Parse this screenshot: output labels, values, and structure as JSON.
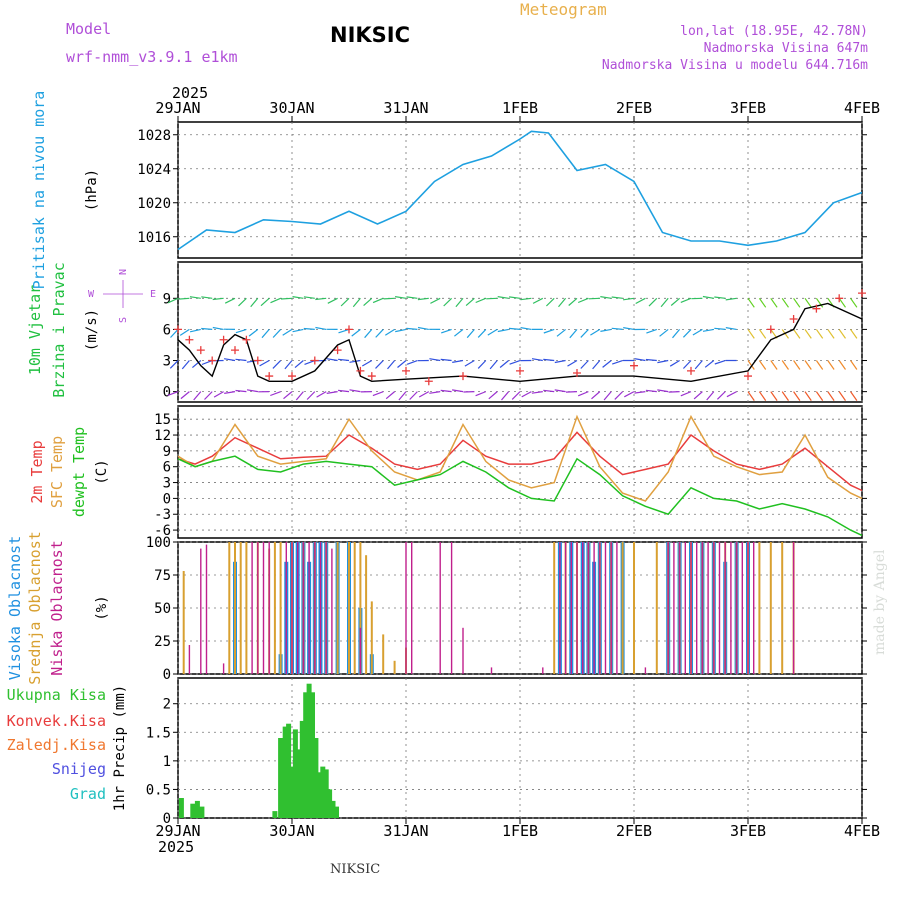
{
  "header": {
    "model_label": "Model",
    "model_name": "wrf-nmm_v3.9.1 e1km",
    "station": "NIKSIC",
    "title": "Meteogram",
    "coords": "lon,lat (18.95E, 42.78N)",
    "elevation": "Nadmorska Visina 647m",
    "model_elevation": "Nadmorska Visina u modelu 644.716m",
    "footer_station": "NIKSIC",
    "credit": "made by Angel",
    "year_top": "2025",
    "year_bottom": "2025"
  },
  "colors": {
    "pressure": "#1ea0e0",
    "temp2m": "#e83c3c",
    "sfc": "#e0a040",
    "dewpt": "#20c020",
    "high_cloud": "#1e90e0",
    "mid_cloud": "#d8a030",
    "low_cloud": "#c0208c",
    "precip": "#30c030",
    "wind_line": "#000000",
    "gust": "#e83c3c"
  },
  "chart_data": [
    {
      "type": "line",
      "panel": "pressure",
      "ylabel_left": "Pritisak na nivou mora",
      "ylabel": "(hPa)",
      "x_categories": [
        "29JAN",
        "30JAN",
        "31JAN",
        "1FEB",
        "2FEB",
        "3FEB",
        "4FEB"
      ],
      "yticks": [
        1016,
        1020,
        1024,
        1028
      ],
      "ylim": [
        1013.5,
        1029.5
      ],
      "x": [
        0,
        0.25,
        0.5,
        0.75,
        1,
        1.25,
        1.5,
        1.75,
        2,
        2.25,
        2.5,
        2.75,
        3,
        3.1,
        3.25,
        3.5,
        3.75,
        4,
        4.25,
        4.5,
        4.75,
        5,
        5.25,
        5.5,
        5.75,
        6
      ],
      "values": [
        1014.5,
        1016.8,
        1016.5,
        1018,
        1017.8,
        1017.5,
        1019,
        1017.5,
        1019,
        1022.5,
        1024.5,
        1025.5,
        1027.5,
        1028.4,
        1028.2,
        1023.8,
        1024.5,
        1022.5,
        1016.5,
        1015.5,
        1015.5,
        1015,
        1015.5,
        1016.5,
        1020,
        1021.2
      ],
      "grid": true
    },
    {
      "type": "line",
      "panel": "wind",
      "ylabel_left": [
        "10m Vjetar",
        "Brzina i Pravac"
      ],
      "ylabel": "(m/s)",
      "compass": {
        "n": "N",
        "s": "S",
        "e": "E",
        "w": "W"
      },
      "yticks": [
        0,
        3,
        6,
        9
      ],
      "ylim": [
        -1,
        12.5
      ],
      "series": [
        {
          "role": "speed",
          "x": [
            0,
            0.1,
            0.2,
            0.3,
            0.4,
            0.5,
            0.6,
            0.7,
            0.8,
            1,
            1.2,
            1.4,
            1.5,
            1.6,
            1.7,
            2,
            2.5,
            3,
            3.5,
            4,
            4.5,
            5,
            5.2,
            5.4,
            5.5,
            5.7,
            6
          ],
          "values": [
            5,
            4,
            2.5,
            1.5,
            4.5,
            5.5,
            5,
            1.5,
            1,
            1,
            2,
            4.5,
            5,
            1.5,
            1,
            1.2,
            1.5,
            1,
            1.5,
            1.5,
            1,
            2,
            5,
            6,
            8,
            8.5,
            7
          ]
        },
        {
          "role": "gust",
          "x": [
            0,
            0.1,
            0.2,
            0.3,
            0.4,
            0.5,
            0.6,
            0.7,
            0.8,
            1,
            1.2,
            1.4,
            1.5,
            1.6,
            1.7,
            2,
            2.2,
            2.5,
            3,
            3.5,
            4,
            4.5,
            5,
            5.2,
            5.4,
            5.6,
            5.8,
            6
          ],
          "values": [
            6,
            5,
            4,
            3,
            5,
            4,
            5,
            3,
            1.5,
            1.5,
            3,
            4,
            6,
            2,
            1.5,
            2,
            1,
            1.5,
            2,
            1.8,
            2.5,
            2,
            1.5,
            6,
            7,
            8,
            9,
            9.5
          ]
        }
      ]
    },
    {
      "type": "line",
      "panel": "temperature",
      "ylabel_left": [
        "2m Temp",
        "SFC Temp",
        "dewpt Temp"
      ],
      "ylabel": "(C)",
      "yticks": [
        -6,
        -3,
        0,
        3,
        6,
        9,
        12,
        15
      ],
      "ylim": [
        -7.5,
        17.5
      ],
      "series": [
        {
          "name": "2m Temp",
          "x": [
            0,
            0.15,
            0.3,
            0.5,
            0.7,
            0.9,
            1.1,
            1.3,
            1.5,
            1.7,
            1.9,
            2.1,
            2.3,
            2.5,
            2.7,
            2.9,
            3.1,
            3.3,
            3.5,
            3.7,
            3.9,
            4.1,
            4.3,
            4.5,
            4.7,
            4.9,
            5.1,
            5.3,
            5.5,
            5.7,
            5.9,
            6
          ],
          "values": [
            7.5,
            6.5,
            8,
            11.5,
            9.5,
            7.5,
            7.8,
            8,
            12,
            9.5,
            6.5,
            5.5,
            6.5,
            11,
            8,
            6.5,
            6.5,
            7.5,
            12.5,
            8,
            4.5,
            5.5,
            6.5,
            12,
            9,
            6.5,
            5.5,
            6.5,
            9.5,
            6,
            2.5,
            1.5
          ]
        },
        {
          "name": "SFC Temp",
          "x": [
            0,
            0.15,
            0.3,
            0.5,
            0.7,
            0.9,
            1.1,
            1.3,
            1.5,
            1.7,
            1.9,
            2.1,
            2.3,
            2.5,
            2.7,
            2.9,
            3.1,
            3.3,
            3.5,
            3.7,
            3.9,
            4.1,
            4.3,
            4.5,
            4.7,
            4.9,
            5.1,
            5.3,
            5.5,
            5.7,
            5.9,
            6
          ],
          "values": [
            8,
            6,
            7,
            14,
            8,
            6.5,
            7,
            7.5,
            15,
            9,
            5,
            3.5,
            5,
            14,
            7,
            3.5,
            2,
            3,
            15.5,
            6,
            1,
            -0.5,
            5,
            15.5,
            8,
            6,
            4.5,
            5,
            12,
            4,
            1,
            0
          ]
        },
        {
          "name": "dewpt Temp",
          "x": [
            0,
            0.15,
            0.3,
            0.5,
            0.7,
            0.9,
            1.1,
            1.3,
            1.5,
            1.7,
            1.9,
            2.1,
            2.3,
            2.5,
            2.7,
            2.9,
            3.1,
            3.3,
            3.5,
            3.7,
            3.9,
            4.1,
            4.3,
            4.5,
            4.7,
            4.9,
            5.1,
            5.3,
            5.5,
            5.7,
            5.9,
            6
          ],
          "values": [
            7.5,
            6,
            7,
            8,
            5.5,
            5,
            6.5,
            7,
            6.5,
            6,
            2.5,
            3.5,
            4.5,
            7,
            5,
            2,
            0,
            -0.5,
            7.5,
            4.5,
            0.5,
            -1.5,
            -3,
            2,
            0,
            -0.5,
            -2,
            -1,
            -2,
            -3.5,
            -6,
            -7
          ]
        }
      ]
    },
    {
      "type": "bar",
      "panel": "cloud",
      "ylabel_left": [
        "Visoka Oblacnost",
        "Srednja Oblacnost",
        "Niska Oblacnost"
      ],
      "ylabel": "(%)",
      "yticks": [
        0,
        25,
        50,
        75,
        100
      ],
      "ylim": [
        0,
        100
      ],
      "series": [
        {
          "name": "Visoka Oblacnost",
          "x": [
            0.5,
            0.9,
            0.95,
            1.0,
            1.05,
            1.1,
            1.15,
            1.2,
            1.25,
            1.3,
            1.4,
            1.5,
            1.6,
            1.7,
            3.35,
            3.45,
            3.55,
            3.6,
            3.65,
            3.7,
            3.8,
            3.9,
            4.3,
            4.4,
            4.5,
            4.6,
            4.7,
            4.8,
            4.9,
            5.0
          ],
          "values": [
            85,
            15,
            85,
            100,
            100,
            100,
            85,
            100,
            100,
            100,
            100,
            100,
            50,
            15,
            100,
            100,
            100,
            100,
            85,
            100,
            100,
            100,
            100,
            100,
            100,
            100,
            100,
            85,
            100,
            100
          ]
        },
        {
          "name": "Srednja Oblacnost",
          "x": [
            0.05,
            0.45,
            0.5,
            0.55,
            0.6,
            0.7,
            0.8,
            0.85,
            0.9,
            1.0,
            1.1,
            1.2,
            1.3,
            1.4,
            1.5,
            1.55,
            1.6,
            1.65,
            1.7,
            1.8,
            1.9,
            2.0,
            3.3,
            3.4,
            3.5,
            3.6,
            3.7,
            3.8,
            3.9,
            4.0,
            4.2,
            4.3,
            4.4,
            4.5,
            4.6,
            4.7,
            4.8,
            4.9,
            5.0,
            5.1,
            5.2,
            5.3,
            5.4
          ],
          "values": [
            78,
            100,
            100,
            100,
            100,
            100,
            95,
            100,
            100,
            100,
            100,
            100,
            100,
            100,
            100,
            100,
            100,
            90,
            55,
            30,
            10,
            20,
            100,
            100,
            100,
            100,
            100,
            100,
            100,
            100,
            100,
            100,
            100,
            100,
            100,
            100,
            100,
            100,
            100,
            100,
            100,
            100,
            100
          ]
        },
        {
          "name": "Niska Oblacnost",
          "x": [
            0.1,
            0.2,
            0.25,
            0.4,
            0.65,
            0.7,
            0.75,
            0.8,
            0.95,
            1.0,
            1.05,
            1.1,
            1.15,
            1.2,
            1.25,
            1.3,
            1.35,
            1.6,
            2.0,
            2.05,
            2.3,
            2.4,
            2.5,
            2.75,
            3.2,
            3.35,
            3.4,
            3.45,
            3.5,
            3.55,
            3.6,
            3.65,
            3.7,
            3.75,
            3.8,
            3.85,
            4.1,
            4.3,
            4.35,
            4.4,
            4.45,
            4.5,
            4.55,
            4.6,
            4.65,
            4.7,
            4.75,
            4.8,
            4.85,
            4.9,
            4.95,
            5.0,
            5.05,
            5.4
          ],
          "values": [
            22,
            95,
            98,
            8,
            100,
            100,
            100,
            100,
            100,
            100,
            100,
            100,
            100,
            100,
            100,
            100,
            95,
            35,
            100,
            100,
            100,
            100,
            35,
            5,
            5,
            100,
            100,
            100,
            100,
            100,
            100,
            100,
            100,
            100,
            100,
            100,
            5,
            100,
            100,
            100,
            100,
            100,
            100,
            100,
            100,
            100,
            100,
            100,
            100,
            100,
            100,
            100,
            100,
            100
          ]
        }
      ]
    },
    {
      "type": "bar",
      "panel": "precip",
      "ylabel_left": [
        "Ukupna Kisa",
        "Konvek.Kisa",
        "Zaledj.Kisa",
        "Snijeg",
        "Grad"
      ],
      "ylabel": "1hr Precip (mm)",
      "yticks": [
        0,
        0.5,
        1,
        1.5,
        2
      ],
      "ylim": [
        0,
        2.45
      ],
      "categories_bottom": [
        "29JAN",
        "30JAN",
        "31JAN",
        "1FEB",
        "2FEB",
        "3FEB",
        "4FEB"
      ],
      "series": [
        {
          "name": "Ukupna Kisa",
          "x": [
            0.03,
            0.13,
            0.17,
            0.21,
            0.85,
            0.9,
            0.94,
            0.97,
            1.0,
            1.03,
            1.06,
            1.09,
            1.12,
            1.15,
            1.18,
            1.21,
            1.24,
            1.27,
            1.3,
            1.33,
            1.36,
            1.39
          ],
          "values": [
            0.35,
            0.25,
            0.3,
            0.2,
            0.12,
            1.4,
            1.6,
            1.65,
            0.9,
            1.55,
            1.2,
            1.7,
            2.2,
            2.35,
            2.2,
            1.4,
            0.8,
            0.9,
            0.85,
            0.5,
            0.3,
            0.2
          ]
        }
      ]
    }
  ]
}
